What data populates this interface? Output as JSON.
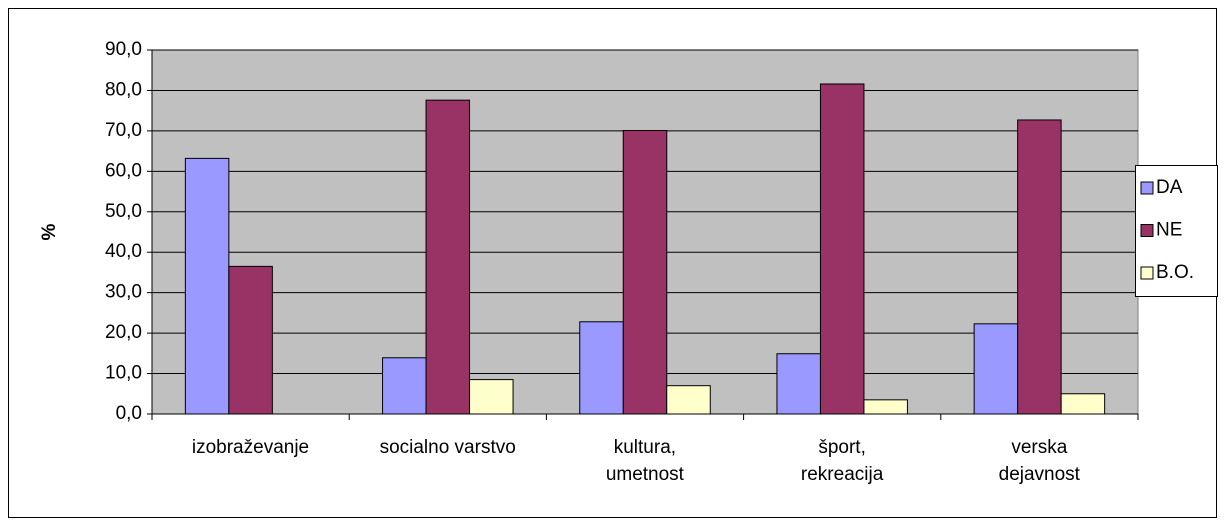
{
  "chart_data": {
    "type": "bar",
    "y_label": "%",
    "categories": [
      "izobraževanje",
      "socialno varstvo",
      "kultura,\numetnost",
      "šport,\nrekreacija",
      "verska\ndejavnost"
    ],
    "series": [
      {
        "name": "DA",
        "color": "#9999ff",
        "values": [
          63.2,
          13.9,
          22.8,
          14.9,
          22.3
        ]
      },
      {
        "name": "NE",
        "color": "#993366",
        "values": [
          36.5,
          77.6,
          70.1,
          81.6,
          72.7
        ]
      },
      {
        "name": "B.O.",
        "color": "#ffffcc",
        "values": [
          0,
          8.5,
          7.0,
          3.5,
          5.0
        ]
      }
    ],
    "ylim": [
      0,
      90
    ],
    "yticks": [
      {
        "value": 0,
        "label": "0,0"
      },
      {
        "value": 10,
        "label": "10,0"
      },
      {
        "value": 20,
        "label": "20,0"
      },
      {
        "value": 30,
        "label": "30,0"
      },
      {
        "value": 40,
        "label": "40,0"
      },
      {
        "value": 50,
        "label": "50,0"
      },
      {
        "value": 60,
        "label": "60,0"
      },
      {
        "value": 70,
        "label": "70,0"
      },
      {
        "value": 80,
        "label": "80,0"
      },
      {
        "value": 90,
        "label": "90,0"
      }
    ],
    "grid": true,
    "legend": "right"
  }
}
